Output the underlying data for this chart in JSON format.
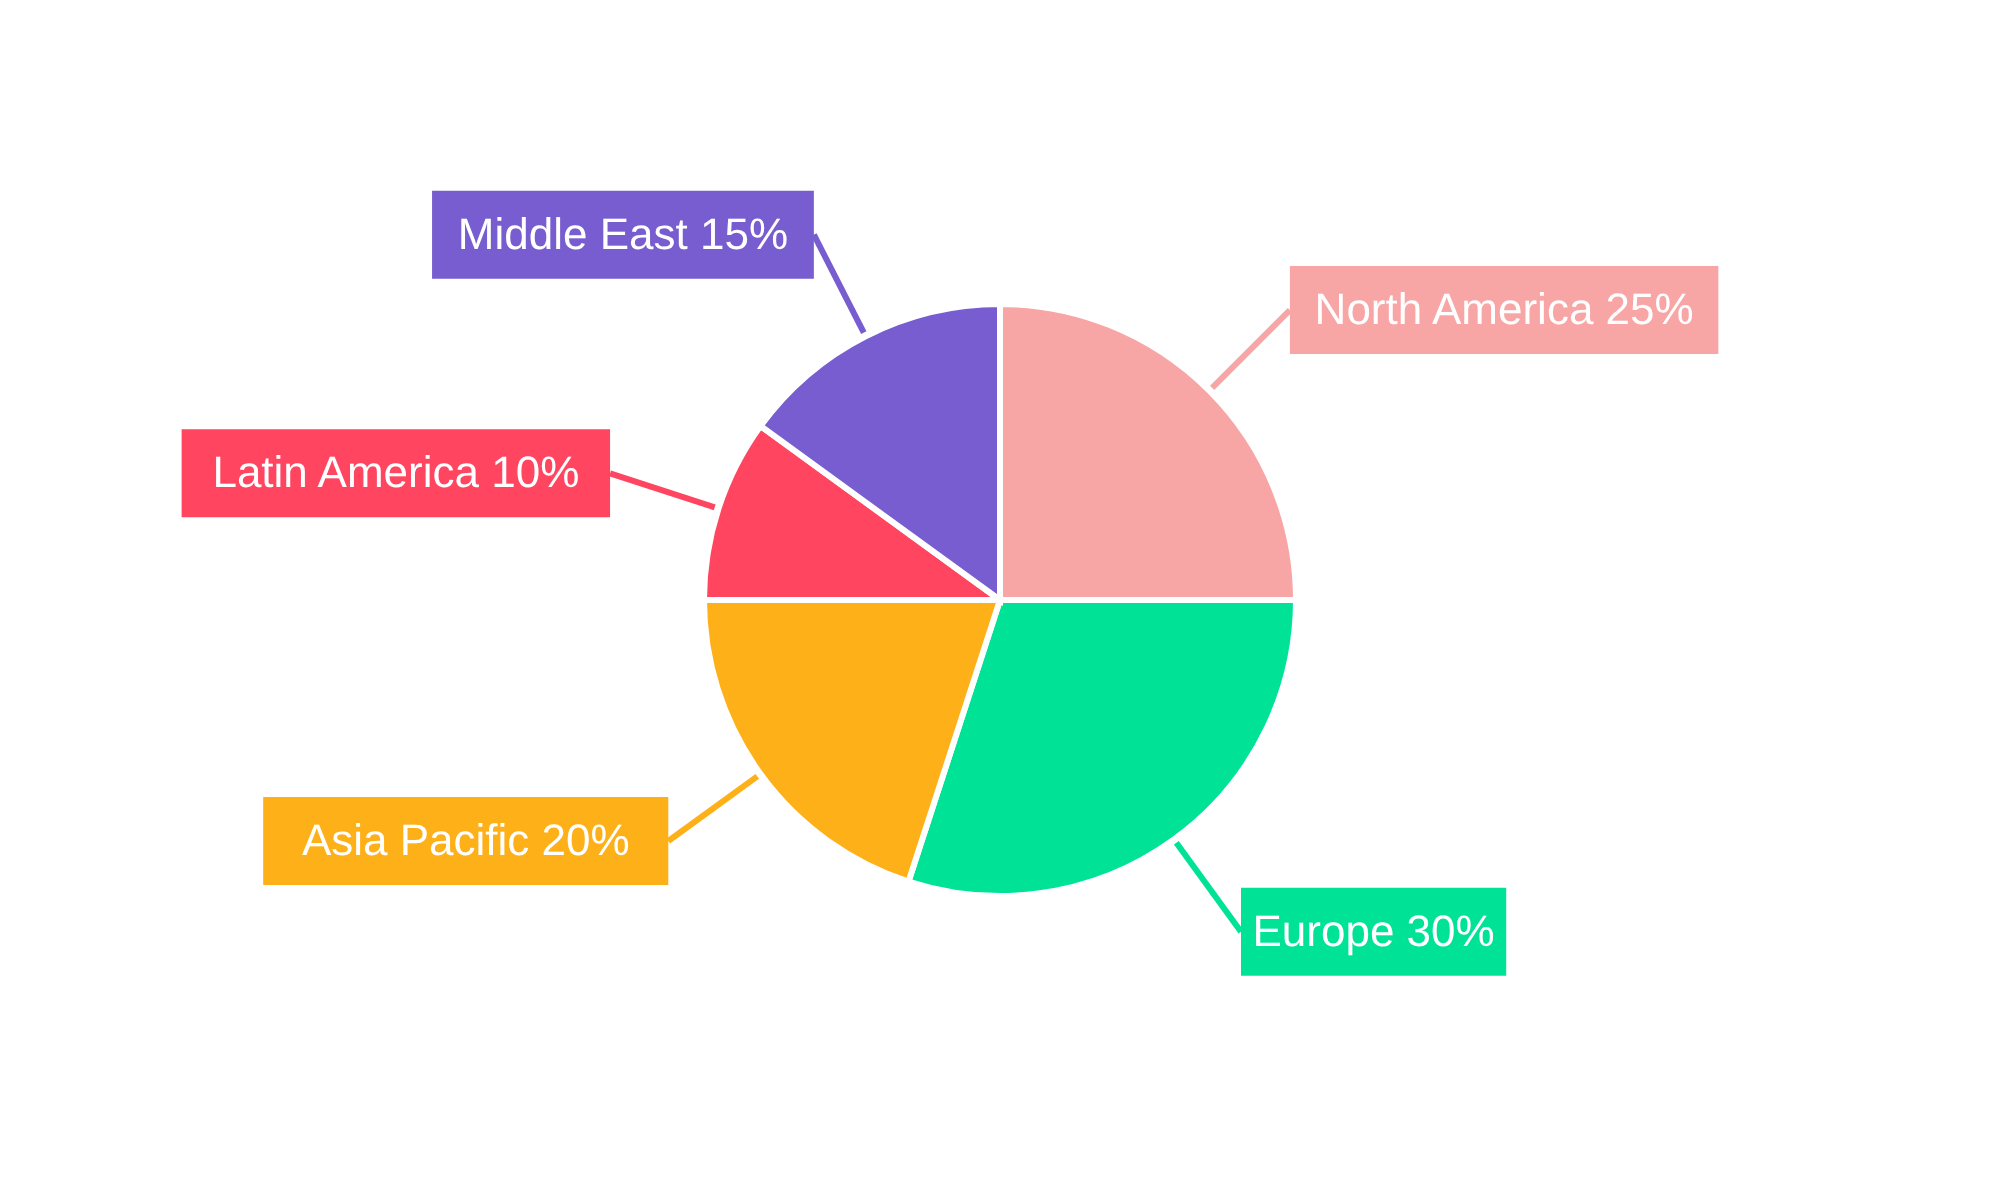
{
  "chart_data": {
    "type": "pie",
    "categories": [
      "North America",
      "Europe",
      "Asia Pacific",
      "Latin America",
      "Middle East"
    ],
    "values": [
      25,
      30,
      20,
      10,
      15
    ],
    "value_labels": [
      "25%",
      "30%",
      "20%",
      "10%",
      "15%"
    ],
    "colors": [
      "#f8a5a5",
      "#00e396",
      "#feb019",
      "#ff4560",
      "#775dd0"
    ]
  }
}
